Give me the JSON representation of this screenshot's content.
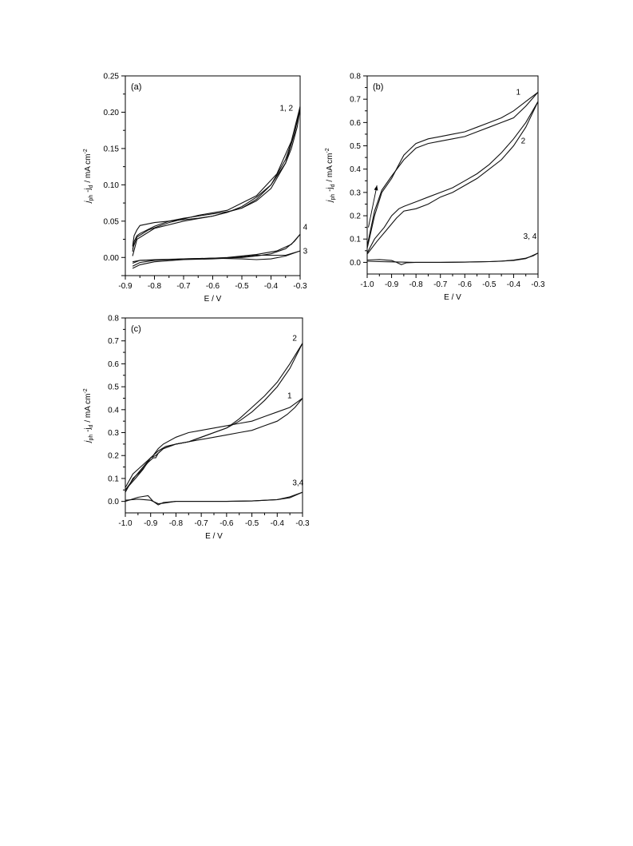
{
  "chart_data": [
    {
      "panel_label": "(a)",
      "type": "line",
      "xlabel": "E / V",
      "ylabel_main": "j",
      "ylabel_sub1": "ph",
      "ylabel_mid": " -j",
      "ylabel_sub2": "d",
      "ylabel_unit": " / mA cm",
      "ylabel_sup": "-2",
      "xlim": [
        -0.9,
        -0.3
      ],
      "ylim": [
        -0.025,
        0.25
      ],
      "xticks": [
        "-0.9",
        "-0.8",
        "-0.7",
        "-0.6",
        "-0.5",
        "-0.4",
        "-0.3"
      ],
      "yticks": [
        "-0.025",
        "0.00",
        "0.05",
        "0.10",
        "0.15",
        "0.20",
        "0.25"
      ],
      "annotations": [
        {
          "text": "1, 2",
          "x": -0.37,
          "y": 0.202
        },
        {
          "text": "4",
          "x": -0.29,
          "y": 0.038
        },
        {
          "text": "3",
          "x": -0.29,
          "y": 0.005
        }
      ],
      "series": [
        {
          "label": "1, 2",
          "x": [
            -0.875,
            -0.87,
            -0.86,
            -0.85,
            -0.8,
            -0.75,
            -0.7,
            -0.65,
            -0.6,
            -0.55,
            -0.5,
            -0.45,
            -0.4,
            -0.35,
            -0.33,
            -0.31,
            -0.3
          ],
          "y": [
            0.015,
            0.03,
            0.038,
            0.044,
            0.048,
            0.05,
            0.052,
            0.054,
            0.057,
            0.062,
            0.07,
            0.083,
            0.1,
            0.13,
            0.15,
            0.18,
            0.205
          ]
        },
        {
          "label": "1, 2",
          "x": [
            -0.3,
            -0.32,
            -0.35,
            -0.4,
            -0.45,
            -0.5,
            -0.55,
            -0.6,
            -0.65,
            -0.7,
            -0.75,
            -0.8,
            -0.85,
            -0.86,
            -0.87,
            -0.875
          ],
          "y": [
            0.205,
            0.17,
            0.13,
            0.095,
            0.078,
            0.068,
            0.063,
            0.06,
            0.057,
            0.054,
            0.05,
            0.043,
            0.033,
            0.03,
            0.022,
            0.008
          ]
        },
        {
          "label": "1, 2",
          "x": [
            -0.875,
            -0.86,
            -0.8,
            -0.7,
            -0.6,
            -0.5,
            -0.45,
            -0.4,
            -0.35,
            -0.32,
            -0.3
          ],
          "y": [
            0.002,
            0.025,
            0.04,
            0.05,
            0.057,
            0.068,
            0.08,
            0.1,
            0.135,
            0.17,
            0.208
          ]
        },
        {
          "label": "1, 2",
          "x": [
            -0.3,
            -0.33,
            -0.38,
            -0.45,
            -0.55,
            -0.65,
            -0.75,
            -0.82,
            -0.86,
            -0.875
          ],
          "y": [
            0.208,
            0.16,
            0.115,
            0.085,
            0.065,
            0.058,
            0.048,
            0.038,
            0.028,
            0.012
          ]
        },
        {
          "label": "4",
          "x": [
            -0.875,
            -0.85,
            -0.8,
            -0.7,
            -0.6,
            -0.5,
            -0.45,
            -0.4,
            -0.35,
            -0.32,
            -0.3
          ],
          "y": [
            -0.008,
            -0.004,
            -0.003,
            -0.002,
            -0.001,
            0.0,
            0.002,
            0.005,
            0.012,
            0.022,
            0.032
          ]
        },
        {
          "label": "4",
          "x": [
            -0.3,
            -0.33,
            -0.38,
            -0.45,
            -0.55,
            -0.65,
            -0.75,
            -0.85,
            -0.875
          ],
          "y": [
            0.032,
            0.018,
            0.009,
            0.004,
            0.0,
            -0.002,
            -0.003,
            -0.004,
            -0.006
          ]
        },
        {
          "label": "3",
          "x": [
            -0.875,
            -0.85,
            -0.8,
            -0.7,
            -0.6,
            -0.55,
            -0.5,
            -0.45,
            -0.4,
            -0.35,
            -0.3
          ],
          "y": [
            -0.015,
            -0.01,
            -0.006,
            -0.003,
            -0.002,
            -0.001,
            0.001,
            0.003,
            0.003,
            0.003,
            0.009
          ]
        },
        {
          "label": "3",
          "x": [
            -0.3,
            -0.35,
            -0.4,
            -0.45,
            -0.5,
            -0.6,
            -0.7,
            -0.8,
            -0.85,
            -0.875
          ],
          "y": [
            0.009,
            0.002,
            -0.002,
            -0.003,
            -0.002,
            -0.001,
            -0.002,
            -0.004,
            -0.007,
            -0.012
          ]
        }
      ]
    },
    {
      "panel_label": "(b)",
      "type": "line",
      "xlabel": "E / V",
      "ylabel_main": "j",
      "ylabel_sub1": "ph",
      "ylabel_mid": " -j",
      "ylabel_sub2": "d",
      "ylabel_unit": " / mA cm",
      "ylabel_sup": "-2",
      "xlim": [
        -1.0,
        -0.3
      ],
      "ylim": [
        -0.05,
        0.8
      ],
      "xticks": [
        "-1.0",
        "-0.9",
        "-0.8",
        "-0.7",
        "-0.6",
        "-0.5",
        "-0.4",
        "-0.3"
      ],
      "yticks": [
        "0.0",
        "0.1",
        "0.2",
        "0.3",
        "0.4",
        "0.5",
        "0.6",
        "0.7",
        "0.8"
      ],
      "annotations": [
        {
          "text": "1",
          "x": -0.39,
          "y": 0.72
        },
        {
          "text": "2",
          "x": -0.37,
          "y": 0.51
        },
        {
          "text": "3, 4",
          "x": -0.36,
          "y": 0.1
        }
      ],
      "arrow": {
        "x1": -0.995,
        "y1": 0.15,
        "x2": -0.96,
        "y2": 0.33
      },
      "series": [
        {
          "label": "1",
          "x": [
            -1.0,
            -0.97,
            -0.94,
            -0.9,
            -0.87,
            -0.85,
            -0.82,
            -0.8,
            -0.75,
            -0.7,
            -0.65,
            -0.6,
            -0.55,
            -0.5,
            -0.45,
            -0.4,
            -0.35,
            -0.3
          ],
          "y": [
            0.06,
            0.2,
            0.3,
            0.36,
            0.42,
            0.46,
            0.49,
            0.51,
            0.53,
            0.54,
            0.55,
            0.56,
            0.58,
            0.6,
            0.62,
            0.65,
            0.69,
            0.73
          ]
        },
        {
          "label": "1",
          "x": [
            -0.3,
            -0.35,
            -0.4,
            -0.45,
            -0.5,
            -0.55,
            -0.6,
            -0.65,
            -0.7,
            -0.75,
            -0.8,
            -0.85,
            -0.9,
            -0.94,
            -0.97,
            -1.0
          ],
          "y": [
            0.73,
            0.67,
            0.62,
            0.6,
            0.58,
            0.56,
            0.54,
            0.53,
            0.52,
            0.51,
            0.49,
            0.44,
            0.37,
            0.31,
            0.22,
            0.07
          ]
        },
        {
          "label": "2",
          "x": [
            -1.0,
            -0.97,
            -0.93,
            -0.9,
            -0.87,
            -0.85,
            -0.8,
            -0.75,
            -0.7,
            -0.65,
            -0.6,
            -0.55,
            -0.5,
            -0.45,
            -0.4,
            -0.35,
            -0.3
          ],
          "y": [
            0.04,
            0.1,
            0.15,
            0.2,
            0.23,
            0.24,
            0.26,
            0.28,
            0.3,
            0.32,
            0.35,
            0.38,
            0.42,
            0.47,
            0.53,
            0.6,
            0.69
          ]
        },
        {
          "label": "2",
          "x": [
            -0.3,
            -0.35,
            -0.4,
            -0.45,
            -0.5,
            -0.55,
            -0.6,
            -0.65,
            -0.7,
            -0.75,
            -0.8,
            -0.85,
            -0.88,
            -0.92,
            -0.96,
            -1.0
          ],
          "y": [
            0.69,
            0.58,
            0.5,
            0.44,
            0.4,
            0.36,
            0.33,
            0.3,
            0.28,
            0.25,
            0.23,
            0.22,
            0.19,
            0.14,
            0.09,
            0.035
          ]
        },
        {
          "label": "3, 4",
          "x": [
            -1.0,
            -0.95,
            -0.9,
            -0.88,
            -0.86,
            -0.84,
            -0.8,
            -0.7,
            -0.6,
            -0.5,
            -0.45,
            -0.4,
            -0.35,
            -0.32,
            -0.3
          ],
          "y": [
            0.01,
            0.012,
            0.008,
            0.0,
            -0.01,
            -0.002,
            0.0,
            0.0,
            0.001,
            0.003,
            0.005,
            0.01,
            0.018,
            0.028,
            0.04
          ]
        },
        {
          "label": "3, 4",
          "x": [
            -0.3,
            -0.35,
            -0.4,
            -0.5,
            -0.6,
            -0.7,
            -0.8,
            -0.9,
            -0.95,
            -1.0
          ],
          "y": [
            0.04,
            0.016,
            0.008,
            0.003,
            0.001,
            0.0,
            0.0,
            0.002,
            0.003,
            0.005
          ]
        }
      ]
    },
    {
      "panel_label": "(c)",
      "type": "line",
      "xlabel": "E / V",
      "ylabel_main": "j",
      "ylabel_sub1": "ph",
      "ylabel_mid": " -j",
      "ylabel_sub2": "d",
      "ylabel_unit": " / mA cm",
      "ylabel_sup": "-2",
      "xlim": [
        -1.0,
        -0.3
      ],
      "ylim": [
        -0.05,
        0.8
      ],
      "xticks": [
        "-1.0",
        "-0.9",
        "-0.8",
        "-0.7",
        "-0.6",
        "-0.5",
        "-0.4",
        "-0.3"
      ],
      "yticks": [
        "0.0",
        "0.1",
        "0.2",
        "0.3",
        "0.4",
        "0.5",
        "0.6",
        "0.7",
        "0.8"
      ],
      "annotations": [
        {
          "text": "2",
          "x": -0.34,
          "y": 0.7
        },
        {
          "text": "1",
          "x": -0.36,
          "y": 0.45
        },
        {
          "text": "3,4",
          "x": -0.34,
          "y": 0.07
        }
      ],
      "series": [
        {
          "label": "2",
          "x": [
            -1.0,
            -0.97,
            -0.94,
            -0.91,
            -0.89,
            -0.88,
            -0.87,
            -0.85,
            -0.8,
            -0.75,
            -0.7,
            -0.65,
            -0.6,
            -0.55,
            -0.5,
            -0.45,
            -0.4,
            -0.35,
            -0.3
          ],
          "y": [
            0.04,
            0.1,
            0.13,
            0.17,
            0.19,
            0.19,
            0.21,
            0.23,
            0.25,
            0.26,
            0.28,
            0.3,
            0.32,
            0.36,
            0.41,
            0.46,
            0.52,
            0.6,
            0.69
          ]
        },
        {
          "label": "2",
          "x": [
            -0.3,
            -0.35,
            -0.4,
            -0.45,
            -0.5,
            -0.55,
            -0.6,
            -0.65,
            -0.7,
            -0.75,
            -0.8,
            -0.85,
            -0.88,
            -0.9,
            -0.93,
            -0.96,
            -1.0
          ],
          "y": [
            0.69,
            0.58,
            0.5,
            0.44,
            0.39,
            0.35,
            0.32,
            0.3,
            0.28,
            0.26,
            0.25,
            0.23,
            0.2,
            0.19,
            0.14,
            0.1,
            0.05
          ]
        },
        {
          "label": "1",
          "x": [
            -1.0,
            -0.97,
            -0.94,
            -0.91,
            -0.89,
            -0.87,
            -0.85,
            -0.8,
            -0.75,
            -0.7,
            -0.65,
            -0.6,
            -0.55,
            -0.5,
            -0.45,
            -0.4,
            -0.35,
            -0.3
          ],
          "y": [
            0.06,
            0.12,
            0.15,
            0.18,
            0.2,
            0.23,
            0.25,
            0.28,
            0.3,
            0.31,
            0.32,
            0.33,
            0.34,
            0.35,
            0.37,
            0.39,
            0.41,
            0.45
          ]
        },
        {
          "label": "1",
          "x": [
            -0.3,
            -0.33,
            -0.36,
            -0.4,
            -0.45,
            -0.5,
            -0.55,
            -0.6,
            -0.65,
            -0.7,
            -0.75,
            -0.8,
            -0.84,
            -0.87,
            -0.9,
            -0.93,
            -0.96,
            -1.0
          ],
          "y": [
            0.45,
            0.41,
            0.38,
            0.35,
            0.33,
            0.31,
            0.3,
            0.29,
            0.28,
            0.27,
            0.26,
            0.25,
            0.24,
            0.22,
            0.19,
            0.15,
            0.11,
            0.05
          ]
        },
        {
          "label": "3,4",
          "x": [
            -1.0,
            -0.95,
            -0.91,
            -0.89,
            -0.87,
            -0.85,
            -0.8,
            -0.7,
            -0.6,
            -0.5,
            -0.4,
            -0.35,
            -0.3
          ],
          "y": [
            0.0,
            0.018,
            0.025,
            0.0,
            -0.015,
            -0.005,
            0.0,
            0.0,
            0.0,
            0.002,
            0.008,
            0.02,
            0.04
          ]
        },
        {
          "label": "3,4",
          "x": [
            -0.3,
            -0.35,
            -0.4,
            -0.5,
            -0.6,
            -0.7,
            -0.8,
            -0.85,
            -0.87,
            -0.9,
            -0.95,
            -1.0
          ],
          "y": [
            0.04,
            0.016,
            0.008,
            0.002,
            0.0,
            0.0,
            0.0,
            -0.008,
            -0.01,
            0.005,
            0.01,
            0.005
          ]
        }
      ]
    }
  ]
}
